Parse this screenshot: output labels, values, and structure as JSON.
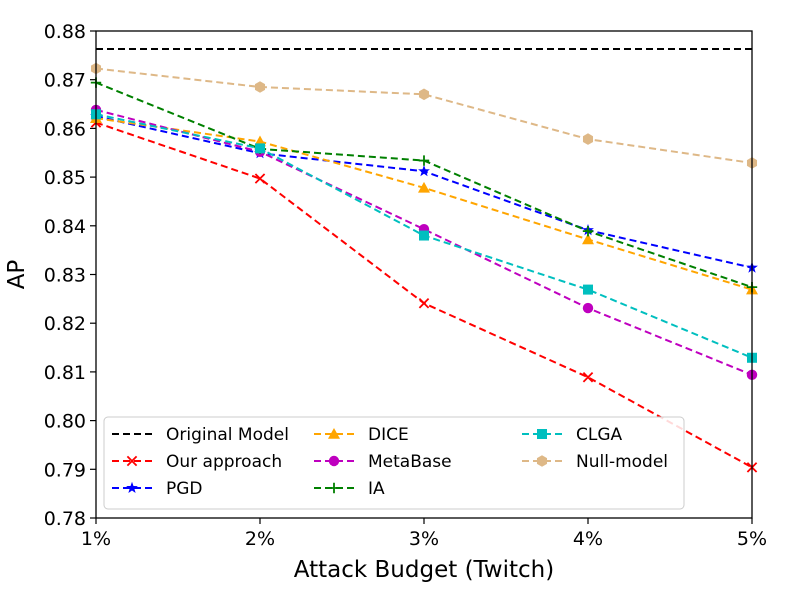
{
  "chart_data": {
    "type": "line",
    "xlabel": "Attack Budget (Twitch)",
    "ylabel": "AP",
    "categories": [
      "1%",
      "2%",
      "3%",
      "4%",
      "5%"
    ],
    "ylim": [
      0.78,
      0.88
    ],
    "yticks": [
      "0.78",
      "0.79",
      "0.80",
      "0.81",
      "0.82",
      "0.83",
      "0.84",
      "0.85",
      "0.86",
      "0.87",
      "0.88"
    ],
    "grid": false,
    "legend_position": "lower-left",
    "series": [
      {
        "name": "Original Model",
        "color": "#000000",
        "marker": "none",
        "values": [
          0.8763,
          0.8763,
          0.8763,
          0.8763,
          0.8763
        ]
      },
      {
        "name": "Our approach",
        "color": "#ff0000",
        "marker": "x",
        "values": [
          0.8612,
          0.8497,
          0.8241,
          0.8089,
          0.7904
        ]
      },
      {
        "name": "PGD",
        "color": "#0000ff",
        "marker": "star",
        "values": [
          0.8625,
          0.8549,
          0.8512,
          0.8391,
          0.8314
        ]
      },
      {
        "name": "DICE",
        "color": "#ffa500",
        "marker": "triangle",
        "values": [
          0.8621,
          0.8573,
          0.8478,
          0.8372,
          0.8269
        ]
      },
      {
        "name": "MetaBase",
        "color": "#bf00bf",
        "marker": "circle",
        "values": [
          0.8638,
          0.8552,
          0.8393,
          0.8231,
          0.8094
        ]
      },
      {
        "name": "IA",
        "color": "#008000",
        "marker": "plus",
        "values": [
          0.8694,
          0.8558,
          0.8534,
          0.8389,
          0.8274
        ]
      },
      {
        "name": "CLGA",
        "color": "#00bfbf",
        "marker": "square",
        "values": [
          0.8629,
          0.8559,
          0.838,
          0.8269,
          0.8129
        ]
      },
      {
        "name": "Null-model",
        "color": "#deb887",
        "marker": "hexagon",
        "values": [
          0.8723,
          0.8685,
          0.867,
          0.8578,
          0.8529
        ]
      }
    ]
  }
}
